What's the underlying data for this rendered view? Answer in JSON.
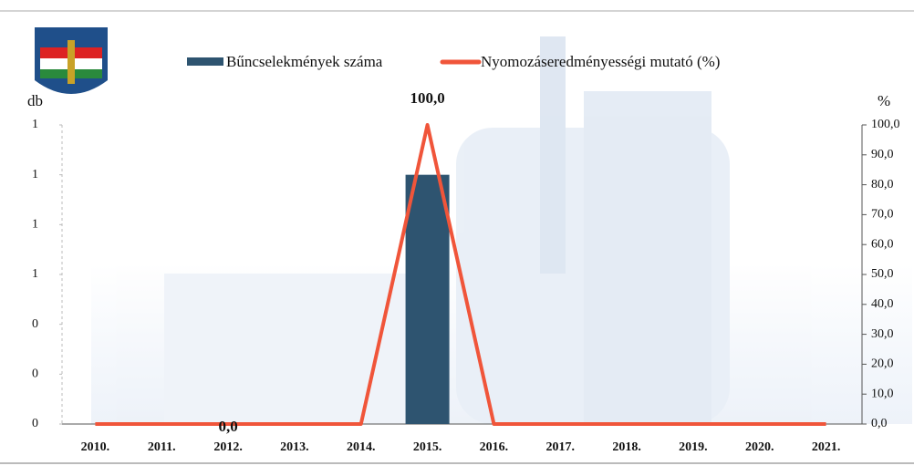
{
  "chart_data": {
    "type": "bar",
    "categories": [
      "2010.",
      "2011.",
      "2012.",
      "2013.",
      "2014.",
      "2015.",
      "2016.",
      "2017.",
      "2018.",
      "2019.",
      "2020.",
      "2021."
    ],
    "ylabel": "db",
    "y2label": "%",
    "ylim": [
      0,
      1.2
    ],
    "yticks": [
      0,
      {
        "value": 0.2,
        "label": "0"
      },
      {
        "value": 0.4,
        "label": "0"
      },
      {
        "value": 0.6,
        "label": "1"
      },
      {
        "value": 0.8,
        "label": "1"
      },
      1,
      {
        "value": 1.2,
        "label": "1"
      }
    ],
    "y2lim": [
      0,
      100
    ],
    "y2ticks": [
      {
        "value": 0,
        "label": "0,0"
      },
      {
        "value": 10,
        "label": "10,0"
      },
      {
        "value": 20,
        "label": "20,0"
      },
      {
        "value": 30,
        "label": "30,0"
      },
      {
        "value": 40,
        "label": "40,0"
      },
      {
        "value": 50,
        "label": "50,0"
      },
      {
        "value": 60,
        "label": "60,0"
      },
      {
        "value": 70,
        "label": "70,0"
      },
      {
        "value": 80,
        "label": "80,0"
      },
      {
        "value": 90,
        "label": "90,0"
      },
      {
        "value": 100,
        "label": "100,0"
      }
    ],
    "series": [
      {
        "name": "Bűncselekmények száma",
        "type": "bar",
        "color": "#2e5470",
        "values": [
          0,
          0,
          0,
          0,
          0,
          1,
          0,
          0,
          0,
          0,
          0,
          0
        ]
      },
      {
        "name": "Nyomozáseredményességi mutató (%)",
        "type": "line",
        "axis": "y2",
        "color": "#f0553a",
        "values": [
          0,
          0,
          0,
          0,
          0,
          100,
          0,
          0,
          0,
          0,
          0,
          0
        ],
        "value_labels": [
          null,
          null,
          "0,0",
          null,
          null,
          "100,0",
          null,
          null,
          null,
          null,
          null,
          null
        ]
      }
    ]
  }
}
